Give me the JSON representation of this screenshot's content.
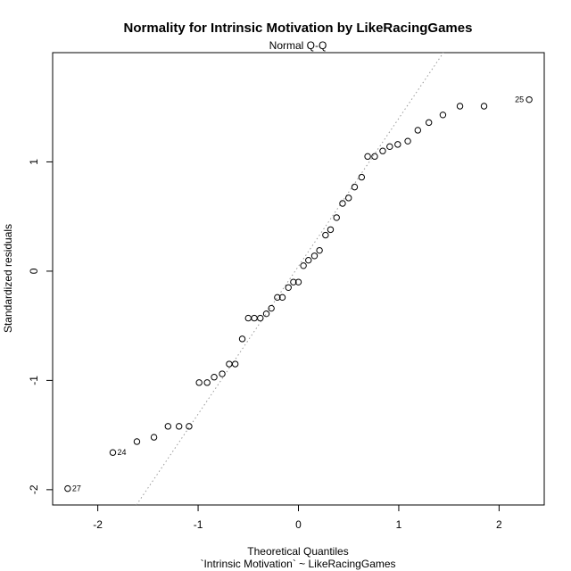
{
  "chart_data": {
    "type": "scatter",
    "title": "Normality for Intrinsic Motivation by LikeRacingGames",
    "subtitle": "Normal Q-Q",
    "xlabel": "Theoretical Quantiles",
    "xlabel2": "`Intrinsic Motivation` ~ LikeRacingGames",
    "ylabel": "Standardized residuals",
    "xlim": [
      -2.45,
      2.45
    ],
    "ylim": [
      -2.14,
      2.0
    ],
    "xticks": [
      -2,
      -1,
      0,
      1,
      2
    ],
    "xtick_labels": [
      "-2",
      "-1",
      "0",
      "1",
      "2"
    ],
    "yticks": [
      -2,
      -1,
      0,
      1
    ],
    "ytick_labels": [
      "-2",
      "-1",
      "0",
      "1"
    ],
    "grid": false,
    "reference_line": {
      "style": "dotted",
      "color": "#999999",
      "p1": [
        -1.6,
        -2.12
      ],
      "p2": [
        1.43,
        1.98
      ]
    },
    "points": [
      {
        "x": -2.3,
        "y": -1.99,
        "label": "27"
      },
      {
        "x": -1.85,
        "y": -1.66,
        "label": "24"
      },
      {
        "x": -1.61,
        "y": -1.56
      },
      {
        "x": -1.44,
        "y": -1.52
      },
      {
        "x": -1.3,
        "y": -1.42
      },
      {
        "x": -1.19,
        "y": -1.42
      },
      {
        "x": -1.09,
        "y": -1.42
      },
      {
        "x": -0.99,
        "y": -1.02
      },
      {
        "x": -0.91,
        "y": -1.02
      },
      {
        "x": -0.84,
        "y": -0.97
      },
      {
        "x": -0.76,
        "y": -0.94
      },
      {
        "x": -0.69,
        "y": -0.85
      },
      {
        "x": -0.63,
        "y": -0.85
      },
      {
        "x": -0.56,
        "y": -0.62
      },
      {
        "x": -0.5,
        "y": -0.43
      },
      {
        "x": -0.44,
        "y": -0.43
      },
      {
        "x": -0.38,
        "y": -0.43
      },
      {
        "x": -0.32,
        "y": -0.39
      },
      {
        "x": -0.27,
        "y": -0.34
      },
      {
        "x": -0.21,
        "y": -0.24
      },
      {
        "x": -0.16,
        "y": -0.24
      },
      {
        "x": -0.1,
        "y": -0.15
      },
      {
        "x": -0.05,
        "y": -0.1
      },
      {
        "x": 0.0,
        "y": -0.1
      },
      {
        "x": 0.05,
        "y": 0.05
      },
      {
        "x": 0.1,
        "y": 0.1
      },
      {
        "x": 0.16,
        "y": 0.14
      },
      {
        "x": 0.21,
        "y": 0.19
      },
      {
        "x": 0.27,
        "y": 0.33
      },
      {
        "x": 0.32,
        "y": 0.38
      },
      {
        "x": 0.38,
        "y": 0.49
      },
      {
        "x": 0.44,
        "y": 0.62
      },
      {
        "x": 0.5,
        "y": 0.67
      },
      {
        "x": 0.56,
        "y": 0.77
      },
      {
        "x": 0.63,
        "y": 0.86
      },
      {
        "x": 0.69,
        "y": 1.05
      },
      {
        "x": 0.76,
        "y": 1.05
      },
      {
        "x": 0.84,
        "y": 1.1
      },
      {
        "x": 0.91,
        "y": 1.14
      },
      {
        "x": 0.99,
        "y": 1.16
      },
      {
        "x": 1.09,
        "y": 1.19
      },
      {
        "x": 1.19,
        "y": 1.29
      },
      {
        "x": 1.3,
        "y": 1.36
      },
      {
        "x": 1.44,
        "y": 1.43
      },
      {
        "x": 1.61,
        "y": 1.51
      },
      {
        "x": 1.85,
        "y": 1.51
      },
      {
        "x": 2.3,
        "y": 1.57,
        "label": "25"
      }
    ]
  }
}
